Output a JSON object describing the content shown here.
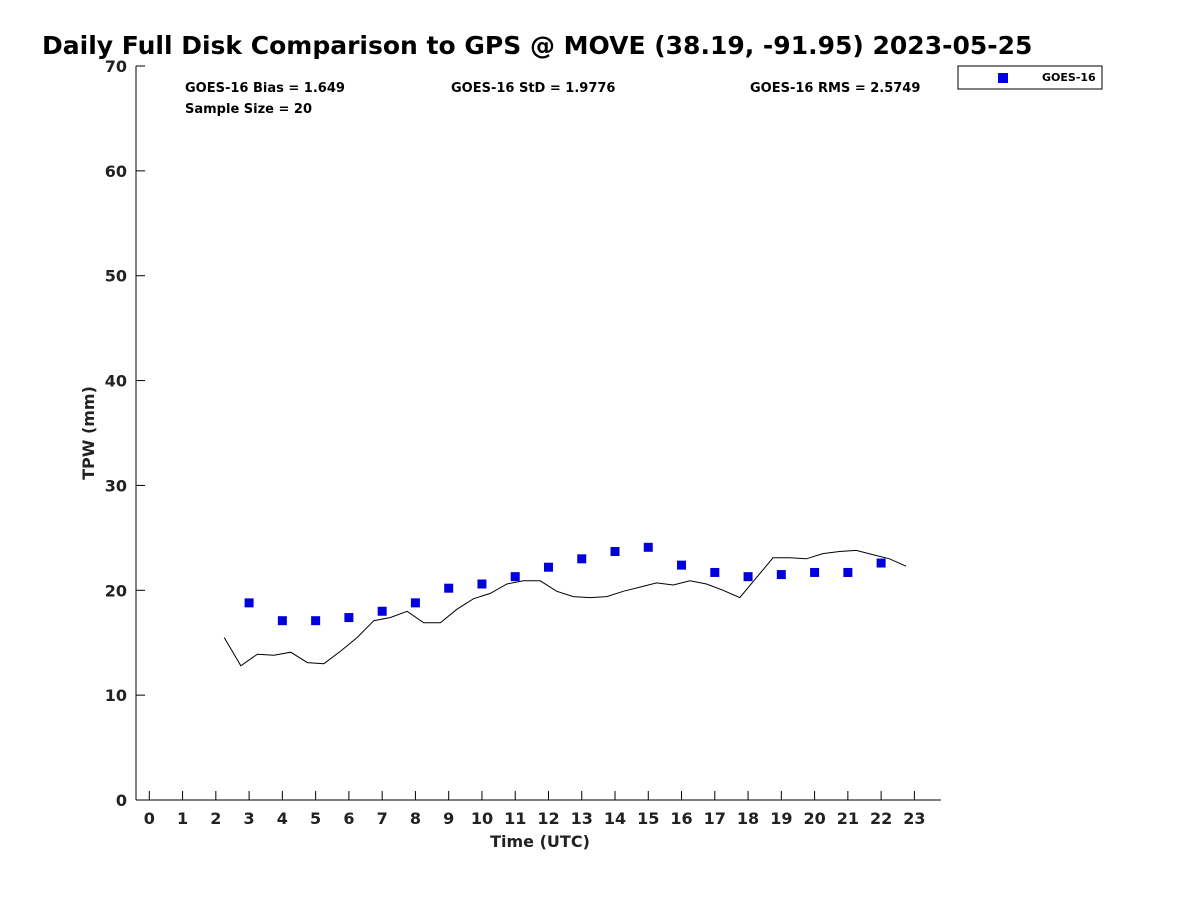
{
  "chart_data": {
    "type": "scatter",
    "title": "Daily Full Disk Comparison to GPS @ MOVE (38.19, -91.95) 2023-05-25",
    "xlabel": "Time (UTC)",
    "ylabel": "TPW (mm)",
    "xlim": [
      -0.4,
      23.8
    ],
    "ylim": [
      0,
      70
    ],
    "x_ticks": [
      "0",
      "1",
      "2",
      "3",
      "4",
      "5",
      "6",
      "7",
      "8",
      "9",
      "10",
      "11",
      "12",
      "13",
      "14",
      "15",
      "16",
      "17",
      "18",
      "19",
      "20",
      "21",
      "22",
      "23"
    ],
    "y_ticks": [
      "0",
      "10",
      "20",
      "30",
      "40",
      "50",
      "60",
      "70"
    ],
    "grid": false,
    "legend_position": "top-right",
    "stats": {
      "bias": "GOES-16 Bias = 1.649",
      "std": "GOES-16 StD = 1.9776",
      "rms": "GOES-16 RMS = 2.5749",
      "sample": "Sample Size = 20"
    },
    "series": [
      {
        "name": "GOES-16",
        "color": "#0000dd",
        "marker": "square",
        "x": [
          3,
          4,
          5,
          6,
          7,
          8,
          9,
          10,
          11,
          12,
          13,
          14,
          15,
          16,
          17,
          18,
          19,
          20,
          21,
          22
        ],
        "y": [
          18.8,
          17.1,
          17.1,
          17.4,
          18.0,
          18.8,
          20.2,
          20.6,
          21.3,
          22.2,
          23.0,
          23.7,
          24.1,
          22.4,
          21.7,
          21.3,
          21.5,
          21.7,
          21.7,
          22.6
        ]
      },
      {
        "color": "#000000",
        "marker": "line",
        "x": [
          2.25,
          2.75,
          3.25,
          3.75,
          4.25,
          4.75,
          5.25,
          5.75,
          6.25,
          6.75,
          7.25,
          7.75,
          8.25,
          8.75,
          9.25,
          9.75,
          10.25,
          10.75,
          11.25,
          11.75,
          12.25,
          12.75,
          13.25,
          13.75,
          14.25,
          14.75,
          15.25,
          15.75,
          16.25,
          16.75,
          17.25,
          17.75,
          18.25,
          18.75,
          19.25,
          19.75,
          20.25,
          20.75,
          21.25,
          21.75,
          22.25,
          22.75
        ],
        "y": [
          15.5,
          12.8,
          13.9,
          13.8,
          14.1,
          13.1,
          13.0,
          14.2,
          15.5,
          17.1,
          17.4,
          18.0,
          16.9,
          16.9,
          18.2,
          19.2,
          19.7,
          20.6,
          20.9,
          20.9,
          19.9,
          19.4,
          19.3,
          19.4,
          19.9,
          20.3,
          20.7,
          20.5,
          20.9,
          20.6,
          20.0,
          19.3,
          21.2,
          23.1,
          23.1,
          23.0,
          23.5,
          23.7,
          23.8,
          23.4,
          23.0,
          22.3
        ]
      }
    ]
  }
}
